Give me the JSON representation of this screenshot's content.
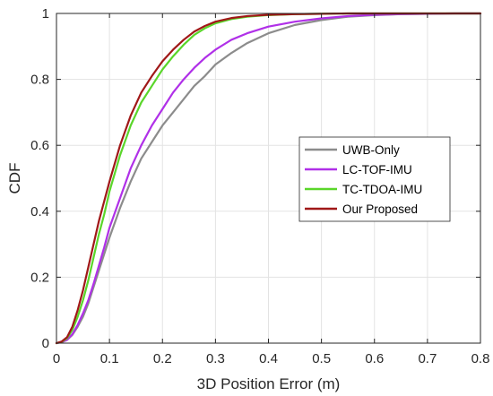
{
  "chart_data": {
    "type": "line",
    "title": "",
    "xlabel": "3D Position Error (m)",
    "ylabel": "CDF",
    "xlim": [
      0,
      0.8
    ],
    "ylim": [
      0,
      1
    ],
    "x_ticks": [
      "0",
      "0.1",
      "0.2",
      "0.3",
      "0.4",
      "0.5",
      "0.6",
      "0.7",
      "0.8"
    ],
    "y_ticks": [
      "0",
      "0.2",
      "0.4",
      "0.6",
      "0.8",
      "1"
    ],
    "grid": true,
    "legend_position": "center-right",
    "series": [
      {
        "name": "UWB-Only",
        "color": "#8c8c8c",
        "x": [
          0,
          0.01,
          0.02,
          0.03,
          0.04,
          0.05,
          0.06,
          0.07,
          0.08,
          0.09,
          0.1,
          0.12,
          0.14,
          0.16,
          0.18,
          0.2,
          0.22,
          0.24,
          0.26,
          0.28,
          0.3,
          0.33,
          0.36,
          0.4,
          0.45,
          0.5,
          0.55,
          0.6,
          0.65,
          0.7,
          0.75,
          0.8
        ],
        "y": [
          0,
          0.003,
          0.01,
          0.025,
          0.05,
          0.08,
          0.12,
          0.17,
          0.22,
          0.27,
          0.32,
          0.41,
          0.49,
          0.56,
          0.61,
          0.66,
          0.7,
          0.74,
          0.78,
          0.81,
          0.845,
          0.88,
          0.91,
          0.94,
          0.965,
          0.98,
          0.99,
          0.995,
          0.998,
          0.999,
          1,
          1
        ]
      },
      {
        "name": "LC-TOF-IMU",
        "color": "#b030e8",
        "x": [
          0,
          0.01,
          0.02,
          0.03,
          0.04,
          0.05,
          0.06,
          0.07,
          0.08,
          0.09,
          0.1,
          0.12,
          0.14,
          0.16,
          0.18,
          0.2,
          0.22,
          0.24,
          0.26,
          0.28,
          0.3,
          0.33,
          0.36,
          0.4,
          0.45,
          0.5,
          0.55,
          0.6,
          0.65,
          0.7,
          0.75,
          0.8
        ],
        "y": [
          0,
          0.003,
          0.01,
          0.027,
          0.055,
          0.09,
          0.13,
          0.18,
          0.235,
          0.29,
          0.35,
          0.44,
          0.53,
          0.6,
          0.66,
          0.71,
          0.76,
          0.8,
          0.835,
          0.865,
          0.89,
          0.92,
          0.94,
          0.96,
          0.975,
          0.985,
          0.992,
          0.996,
          0.998,
          0.999,
          1,
          1
        ]
      },
      {
        "name": "TC-TDOA-IMU",
        "color": "#5ad62a",
        "x": [
          0,
          0.01,
          0.02,
          0.03,
          0.04,
          0.05,
          0.06,
          0.07,
          0.08,
          0.09,
          0.1,
          0.12,
          0.14,
          0.16,
          0.18,
          0.2,
          0.22,
          0.24,
          0.26,
          0.28,
          0.3,
          0.33,
          0.36,
          0.4,
          0.45,
          0.5,
          0.55,
          0.6,
          0.65,
          0.7,
          0.75,
          0.8
        ],
        "y": [
          0,
          0.004,
          0.015,
          0.04,
          0.08,
          0.13,
          0.19,
          0.26,
          0.33,
          0.39,
          0.46,
          0.57,
          0.66,
          0.73,
          0.78,
          0.83,
          0.87,
          0.905,
          0.935,
          0.955,
          0.97,
          0.983,
          0.99,
          0.995,
          0.998,
          0.999,
          1,
          1,
          1,
          1,
          1,
          1
        ]
      },
      {
        "name": "Our Proposed",
        "color": "#a01818",
        "x": [
          0,
          0.01,
          0.02,
          0.03,
          0.04,
          0.05,
          0.06,
          0.07,
          0.08,
          0.09,
          0.1,
          0.12,
          0.14,
          0.16,
          0.18,
          0.2,
          0.22,
          0.24,
          0.26,
          0.28,
          0.3,
          0.33,
          0.36,
          0.4,
          0.45,
          0.5,
          0.55,
          0.6,
          0.65,
          0.7,
          0.75,
          0.8
        ],
        "y": [
          0,
          0.005,
          0.018,
          0.05,
          0.1,
          0.16,
          0.23,
          0.3,
          0.37,
          0.43,
          0.49,
          0.6,
          0.69,
          0.76,
          0.81,
          0.855,
          0.89,
          0.92,
          0.945,
          0.962,
          0.975,
          0.986,
          0.992,
          0.996,
          0.998,
          0.999,
          1,
          1,
          1,
          1,
          1,
          1
        ]
      }
    ]
  }
}
